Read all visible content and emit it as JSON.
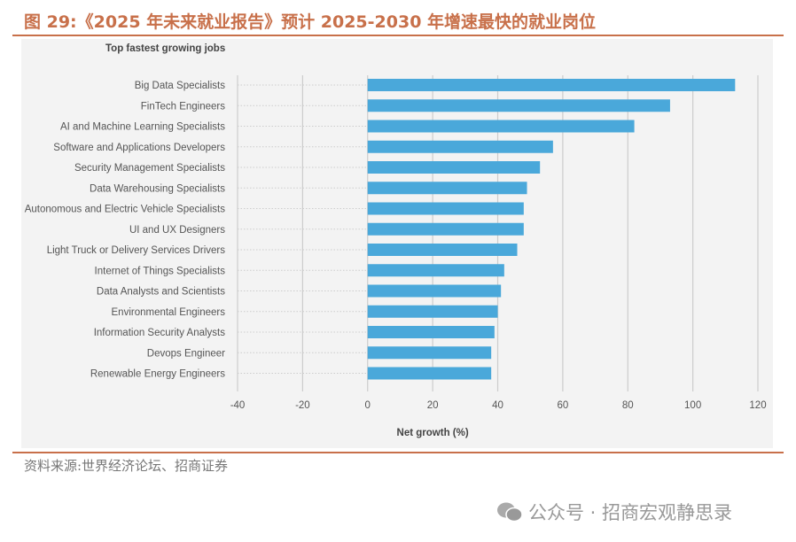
{
  "figure_title": "图 29:《2025 年未来就业报告》预计 2025-2030 年增速最快的就业岗位",
  "source": "资料来源:世界经济论坛、招商证券",
  "watermark": "公众号 · 招商宏观静思录",
  "watermark_icon": "wechat-icon",
  "chart_data": {
    "type": "bar",
    "orientation": "horizontal",
    "title": "Top fastest growing jobs",
    "xlabel": "Net growth (%)",
    "xlim": [
      -40,
      120
    ],
    "xticks": [
      -40,
      -20,
      0,
      20,
      40,
      60,
      80,
      100,
      120
    ],
    "grid": true,
    "bar_color": "#4aa8da",
    "categories": [
      "Big Data Specialists",
      "FinTech Engineers",
      "AI and Machine Learning Specialists",
      "Software and Applications Developers",
      "Security Management Specialists",
      "Data Warehousing Specialists",
      "Autonomous and Electric Vehicle Specialists",
      "UI and UX Designers",
      "Light Truck or Delivery Services Drivers",
      "Internet of Things Specialists",
      "Data Analysts and Scientists",
      "Environmental Engineers",
      "Information Security Analysts",
      "Devops Engineer",
      "Renewable Energy Engineers"
    ],
    "values": [
      113,
      93,
      82,
      57,
      53,
      49,
      48,
      48,
      46,
      42,
      41,
      40,
      39,
      38,
      38
    ]
  }
}
